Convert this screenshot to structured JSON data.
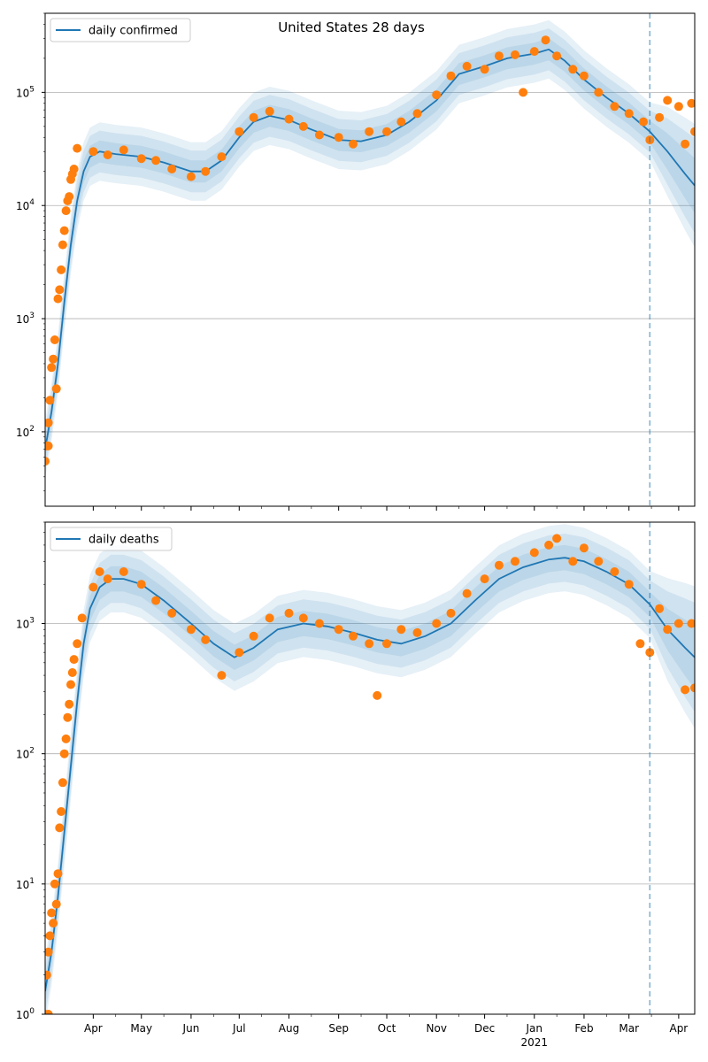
{
  "figure": {
    "title": "United States 28 days"
  },
  "colors": {
    "model_line": "#1f77b4",
    "band": "#1f77b4",
    "observed_points": "#ff7f0e",
    "forecast_line": "#1f77b4",
    "grid": "#b0b0b0"
  },
  "chart_data": [
    {
      "type": "line",
      "scale": "log",
      "legend": "daily confirmed",
      "legend_position": "top-left",
      "grid": "horizontal",
      "x_range": [
        "2020-03-02",
        "2021-04-11"
      ],
      "ylim": [
        22,
        500000
      ],
      "yticks": [
        {
          "value": 100,
          "label": "10^2",
          "base": "10",
          "exp": "2"
        },
        {
          "value": 1000,
          "label": "10^3",
          "base": "10",
          "exp": "3"
        },
        {
          "value": 10000,
          "label": "10^4",
          "base": "10",
          "exp": "4"
        },
        {
          "value": 100000,
          "label": "10^5",
          "base": "10",
          "exp": "5"
        }
      ],
      "forecast_start": "2021-03-14",
      "model": [
        [
          "2020-03-02",
          70
        ],
        [
          "2020-03-06",
          150
        ],
        [
          "2020-03-10",
          400
        ],
        [
          "2020-03-14",
          1400
        ],
        [
          "2020-03-18",
          4500
        ],
        [
          "2020-03-22",
          11000
        ],
        [
          "2020-03-26",
          20000
        ],
        [
          "2020-03-30",
          27000
        ],
        [
          "2020-04-05",
          30000
        ],
        [
          "2020-04-15",
          28500
        ],
        [
          "2020-05-01",
          27000
        ],
        [
          "2020-05-15",
          24000
        ],
        [
          "2020-06-01",
          20000
        ],
        [
          "2020-06-10",
          20000
        ],
        [
          "2020-06-20",
          25000
        ],
        [
          "2020-07-01",
          40000
        ],
        [
          "2020-07-10",
          55000
        ],
        [
          "2020-07-20",
          62000
        ],
        [
          "2020-08-01",
          57000
        ],
        [
          "2020-08-15",
          47000
        ],
        [
          "2020-09-01",
          38000
        ],
        [
          "2020-09-15",
          37000
        ],
        [
          "2020-10-01",
          42000
        ],
        [
          "2020-10-15",
          55000
        ],
        [
          "2020-11-01",
          85000
        ],
        [
          "2020-11-15",
          145000
        ],
        [
          "2020-12-01",
          170000
        ],
        [
          "2020-12-15",
          200000
        ],
        [
          "2021-01-01",
          220000
        ],
        [
          "2021-01-10",
          240000
        ],
        [
          "2021-01-20",
          190000
        ],
        [
          "2021-02-01",
          130000
        ],
        [
          "2021-02-15",
          90000
        ],
        [
          "2021-03-01",
          65000
        ],
        [
          "2021-03-14",
          45000
        ],
        [
          "2021-03-25",
          30000
        ],
        [
          "2021-04-05",
          19000
        ],
        [
          "2021-04-11",
          15000
        ]
      ],
      "observed": [
        [
          "2020-03-02",
          55
        ],
        [
          "2020-03-03",
          75
        ],
        [
          "2020-03-04",
          75
        ],
        [
          "2020-03-04",
          120
        ],
        [
          "2020-03-05",
          190
        ],
        [
          "2020-03-06",
          370
        ],
        [
          "2020-03-07",
          440
        ],
        [
          "2020-03-08",
          650
        ],
        [
          "2020-03-09",
          240
        ],
        [
          "2020-03-10",
          1500
        ],
        [
          "2020-03-11",
          1800
        ],
        [
          "2020-03-12",
          2700
        ],
        [
          "2020-03-13",
          4500
        ],
        [
          "2020-03-14",
          6000
        ],
        [
          "2020-03-15",
          9000
        ],
        [
          "2020-03-16",
          11000
        ],
        [
          "2020-03-17",
          12000
        ],
        [
          "2020-03-18",
          17000
        ],
        [
          "2020-03-19",
          19000
        ],
        [
          "2020-03-20",
          21000
        ],
        [
          "2020-03-22",
          32000
        ],
        [
          "2020-04-01",
          30000
        ],
        [
          "2020-04-10",
          28000
        ],
        [
          "2020-04-20",
          31000
        ],
        [
          "2020-05-01",
          26000
        ],
        [
          "2020-05-10",
          25000
        ],
        [
          "2020-05-20",
          21000
        ],
        [
          "2020-06-01",
          18000
        ],
        [
          "2020-06-10",
          20000
        ],
        [
          "2020-06-20",
          27000
        ],
        [
          "2020-07-01",
          45000
        ],
        [
          "2020-07-10",
          60000
        ],
        [
          "2020-07-20",
          68000
        ],
        [
          "2020-08-01",
          58000
        ],
        [
          "2020-08-10",
          50000
        ],
        [
          "2020-08-20",
          42000
        ],
        [
          "2020-09-01",
          40000
        ],
        [
          "2020-09-10",
          35000
        ],
        [
          "2020-09-20",
          45000
        ],
        [
          "2020-10-01",
          45000
        ],
        [
          "2020-10-10",
          55000
        ],
        [
          "2020-10-20",
          65000
        ],
        [
          "2020-11-01",
          95000
        ],
        [
          "2020-11-10",
          140000
        ],
        [
          "2020-11-20",
          170000
        ],
        [
          "2020-12-01",
          160000
        ],
        [
          "2020-12-10",
          210000
        ],
        [
          "2020-12-20",
          215000
        ],
        [
          "2020-12-25",
          100000
        ],
        [
          "2021-01-01",
          230000
        ],
        [
          "2021-01-08",
          290000
        ],
        [
          "2021-01-15",
          210000
        ],
        [
          "2021-01-25",
          160000
        ],
        [
          "2021-02-01",
          140000
        ],
        [
          "2021-02-10",
          100000
        ],
        [
          "2021-02-20",
          75000
        ],
        [
          "2021-03-01",
          65000
        ],
        [
          "2021-03-10",
          55000
        ],
        [
          "2021-03-14",
          38000
        ],
        [
          "2021-03-20",
          60000
        ],
        [
          "2021-03-25",
          85000
        ],
        [
          "2021-04-01",
          75000
        ],
        [
          "2021-04-05",
          35000
        ],
        [
          "2021-04-09",
          80000
        ],
        [
          "2021-04-11",
          45000
        ]
      ]
    },
    {
      "type": "line",
      "scale": "log",
      "legend": "daily deaths",
      "legend_position": "top-left",
      "grid": "horizontal",
      "x_range": [
        "2020-03-02",
        "2021-04-11"
      ],
      "ylim": [
        1,
        6000
      ],
      "yticks": [
        {
          "value": 1,
          "label": "10^0",
          "base": "10",
          "exp": "0"
        },
        {
          "value": 10,
          "label": "10^1",
          "base": "10",
          "exp": "1"
        },
        {
          "value": 100,
          "label": "10^2",
          "base": "10",
          "exp": "2"
        },
        {
          "value": 1000,
          "label": "10^3",
          "base": "10",
          "exp": "3"
        }
      ],
      "xticks": [
        {
          "date": "2020-04-01",
          "label": "Apr"
        },
        {
          "date": "2020-05-01",
          "label": "May"
        },
        {
          "date": "2020-06-01",
          "label": "Jun"
        },
        {
          "date": "2020-07-01",
          "label": "Jul"
        },
        {
          "date": "2020-08-01",
          "label": "Aug"
        },
        {
          "date": "2020-09-01",
          "label": "Sep"
        },
        {
          "date": "2020-10-01",
          "label": "Oct"
        },
        {
          "date": "2020-11-01",
          "label": "Nov"
        },
        {
          "date": "2020-12-01",
          "label": "Dec"
        },
        {
          "date": "2021-01-01",
          "label": "Jan"
        },
        {
          "date": "2021-02-01",
          "label": "Feb"
        },
        {
          "date": "2021-03-01",
          "label": "Mar"
        },
        {
          "date": "2021-04-01",
          "label": "Apr"
        }
      ],
      "year_label": {
        "date": "2021-01-01",
        "label": "2021"
      },
      "forecast_start": "2021-03-14",
      "model": [
        [
          "2020-03-02",
          1.5
        ],
        [
          "2020-03-06",
          3
        ],
        [
          "2020-03-10",
          8
        ],
        [
          "2020-03-14",
          25
        ],
        [
          "2020-03-18",
          80
        ],
        [
          "2020-03-22",
          250
        ],
        [
          "2020-03-26",
          700
        ],
        [
          "2020-03-30",
          1300
        ],
        [
          "2020-04-05",
          1900
        ],
        [
          "2020-04-12",
          2200
        ],
        [
          "2020-04-20",
          2200
        ],
        [
          "2020-05-01",
          2000
        ],
        [
          "2020-05-15",
          1500
        ],
        [
          "2020-06-01",
          1000
        ],
        [
          "2020-06-15",
          700
        ],
        [
          "2020-06-28",
          550
        ],
        [
          "2020-07-10",
          650
        ],
        [
          "2020-07-25",
          900
        ],
        [
          "2020-08-10",
          1000
        ],
        [
          "2020-08-25",
          950
        ],
        [
          "2020-09-10",
          850
        ],
        [
          "2020-09-25",
          750
        ],
        [
          "2020-10-10",
          700
        ],
        [
          "2020-10-25",
          800
        ],
        [
          "2020-11-10",
          1000
        ],
        [
          "2020-11-25",
          1500
        ],
        [
          "2020-12-10",
          2200
        ],
        [
          "2020-12-25",
          2700
        ],
        [
          "2021-01-10",
          3100
        ],
        [
          "2021-01-20",
          3200
        ],
        [
          "2021-02-01",
          3000
        ],
        [
          "2021-02-15",
          2500
        ],
        [
          "2021-03-01",
          2000
        ],
        [
          "2021-03-14",
          1400
        ],
        [
          "2021-03-25",
          900
        ],
        [
          "2021-04-05",
          650
        ],
        [
          "2021-04-11",
          550
        ]
      ],
      "observed": [
        [
          "2020-03-02",
          1
        ],
        [
          "2020-03-03",
          2
        ],
        [
          "2020-03-04",
          1
        ],
        [
          "2020-03-04",
          3
        ],
        [
          "2020-03-05",
          4
        ],
        [
          "2020-03-06",
          6
        ],
        [
          "2020-03-07",
          5
        ],
        [
          "2020-03-08",
          10
        ],
        [
          "2020-03-09",
          7
        ],
        [
          "2020-03-10",
          12
        ],
        [
          "2020-03-11",
          27
        ],
        [
          "2020-03-12",
          36
        ],
        [
          "2020-03-13",
          60
        ],
        [
          "2020-03-14",
          100
        ],
        [
          "2020-03-15",
          130
        ],
        [
          "2020-03-16",
          190
        ],
        [
          "2020-03-17",
          240
        ],
        [
          "2020-03-18",
          340
        ],
        [
          "2020-03-19",
          420
        ],
        [
          "2020-03-20",
          530
        ],
        [
          "2020-03-22",
          700
        ],
        [
          "2020-03-25",
          1100
        ],
        [
          "2020-04-01",
          1900
        ],
        [
          "2020-04-05",
          2500
        ],
        [
          "2020-04-10",
          2200
        ],
        [
          "2020-04-20",
          2500
        ],
        [
          "2020-05-01",
          2000
        ],
        [
          "2020-05-10",
          1500
        ],
        [
          "2020-05-20",
          1200
        ],
        [
          "2020-06-01",
          900
        ],
        [
          "2020-06-10",
          750
        ],
        [
          "2020-06-20",
          400
        ],
        [
          "2020-07-01",
          600
        ],
        [
          "2020-07-10",
          800
        ],
        [
          "2020-07-20",
          1100
        ],
        [
          "2020-08-01",
          1200
        ],
        [
          "2020-08-10",
          1100
        ],
        [
          "2020-08-20",
          1000
        ],
        [
          "2020-09-01",
          900
        ],
        [
          "2020-09-10",
          800
        ],
        [
          "2020-09-20",
          700
        ],
        [
          "2020-09-25",
          280
        ],
        [
          "2020-10-01",
          700
        ],
        [
          "2020-10-10",
          900
        ],
        [
          "2020-10-20",
          850
        ],
        [
          "2020-11-01",
          1000
        ],
        [
          "2020-11-10",
          1200
        ],
        [
          "2020-11-20",
          1700
        ],
        [
          "2020-12-01",
          2200
        ],
        [
          "2020-12-10",
          2800
        ],
        [
          "2020-12-20",
          3000
        ],
        [
          "2021-01-01",
          3500
        ],
        [
          "2021-01-10",
          4000
        ],
        [
          "2021-01-15",
          4500
        ],
        [
          "2021-01-25",
          3000
        ],
        [
          "2021-02-01",
          3800
        ],
        [
          "2021-02-10",
          3000
        ],
        [
          "2021-02-20",
          2500
        ],
        [
          "2021-03-01",
          2000
        ],
        [
          "2021-03-08",
          700
        ],
        [
          "2021-03-14",
          600
        ],
        [
          "2021-03-20",
          1300
        ],
        [
          "2021-03-25",
          900
        ],
        [
          "2021-04-01",
          1000
        ],
        [
          "2021-04-05",
          310
        ],
        [
          "2021-04-09",
          1000
        ],
        [
          "2021-04-11",
          320
        ]
      ]
    }
  ]
}
